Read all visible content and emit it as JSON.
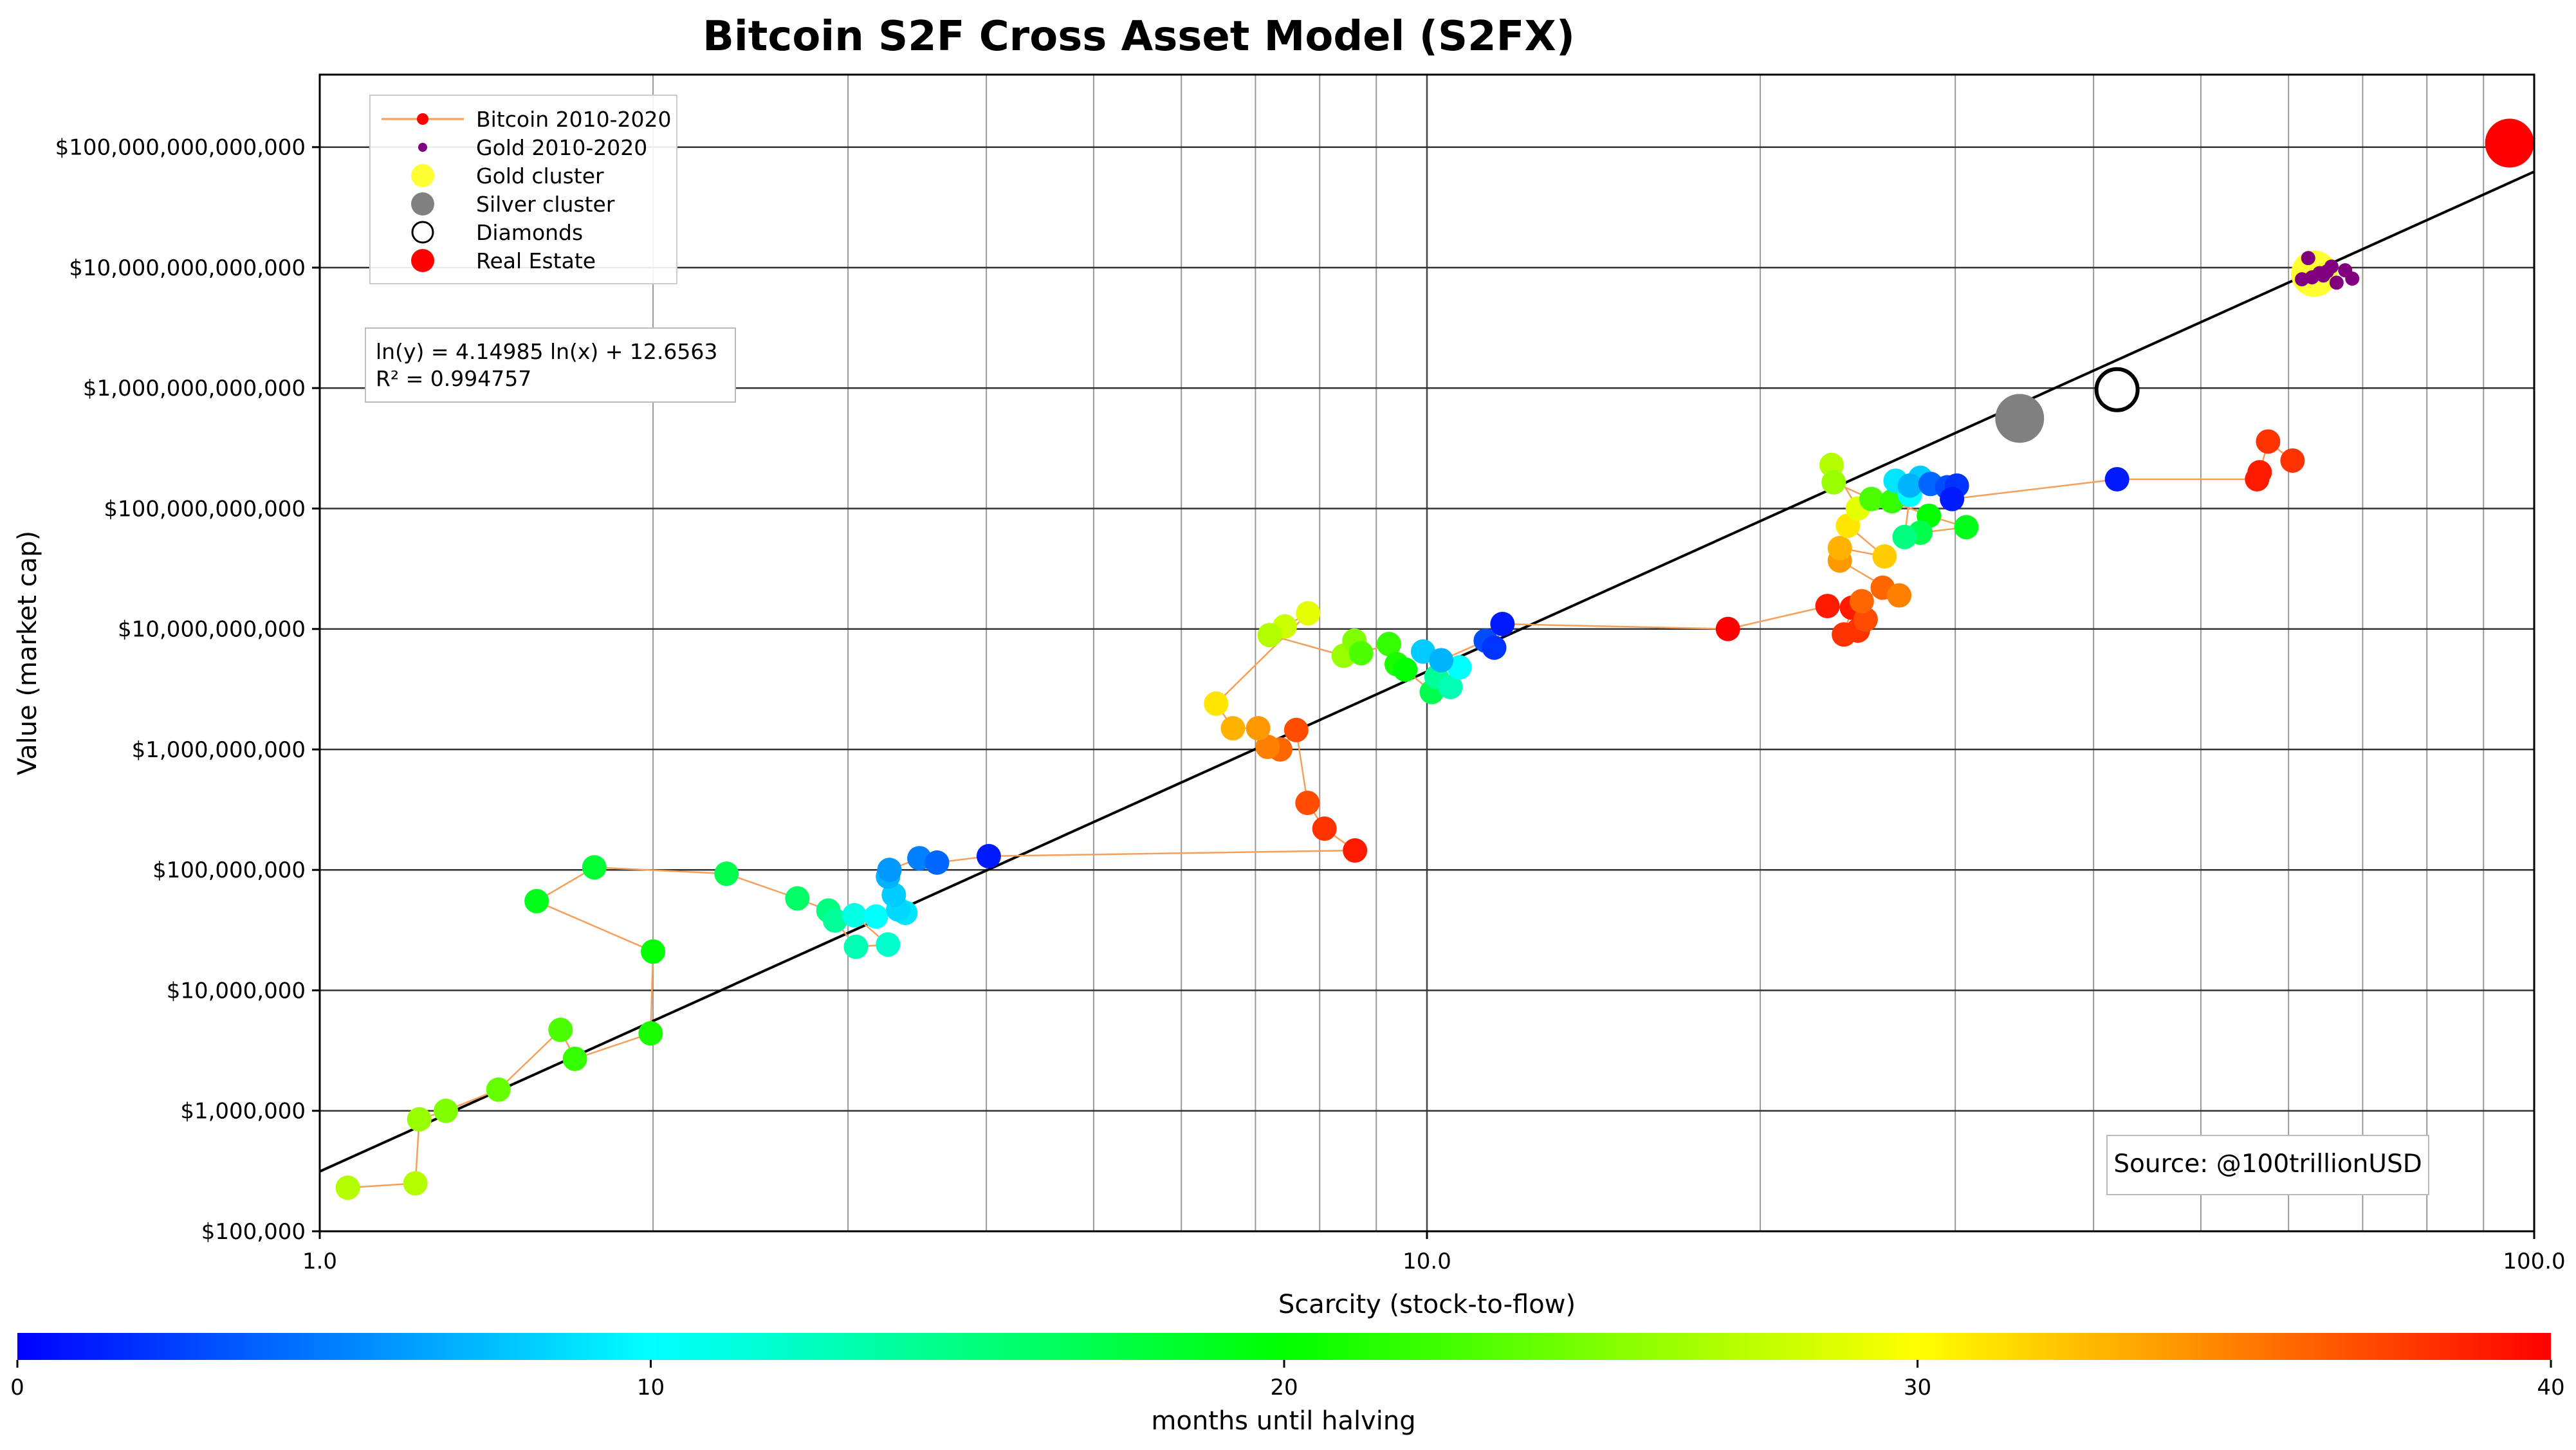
{
  "chart_data": {
    "type": "scatter",
    "title": "Bitcoin S2F Cross Asset Model (S2FX)",
    "xlabel": "Scarcity (stock-to-flow)",
    "ylabel": "Value (market cap)",
    "x_scale": "log",
    "y_scale": "log",
    "xlim": [
      1.0,
      100.0
    ],
    "ylim": [
      100000,
      400000000000000
    ],
    "x_ticks": [
      {
        "value": 1,
        "label": "1.0"
      },
      {
        "value": 10,
        "label": "10.0"
      },
      {
        "value": 100,
        "label": "100.0"
      }
    ],
    "y_ticks": [
      {
        "value": 100000,
        "label": "$100,000"
      },
      {
        "value": 1000000,
        "label": "$1,000,000"
      },
      {
        "value": 10000000,
        "label": "$10,000,000"
      },
      {
        "value": 100000000,
        "label": "$100,000,000"
      },
      {
        "value": 1000000000,
        "label": "$1,000,000,000"
      },
      {
        "value": 10000000000,
        "label": "$10,000,000,000"
      },
      {
        "value": 100000000000,
        "label": "$100,000,000,000"
      },
      {
        "value": 1000000000000,
        "label": "$1,000,000,000,000"
      },
      {
        "value": 10000000000000,
        "label": "$10,000,000,000,000"
      },
      {
        "value": 100000000000000,
        "label": "$100,000,000,000,000"
      }
    ],
    "grid": true,
    "legend_position": "top-left",
    "legend": [
      {
        "label": "Bitcoin 2010-2020",
        "marker": "line-dot",
        "color": "#ff0000",
        "line_color": "#f5a05a"
      },
      {
        "label": "Gold 2010-2020",
        "marker": "dot",
        "color": "#800080"
      },
      {
        "label": "Gold cluster",
        "marker": "circle",
        "color": "#ffff33"
      },
      {
        "label": "Silver cluster",
        "marker": "circle",
        "color": "#808080"
      },
      {
        "label": "Diamonds",
        "marker": "open-circle",
        "color": "#000000"
      },
      {
        "label": "Real Estate",
        "marker": "circle",
        "color": "#ff0000"
      }
    ],
    "regression": {
      "label_line1": "ln(y) = 4.14985 ln(x) + 12.6563",
      "label_line2": "R² = 0.994757",
      "slope": 4.14985,
      "intercept": 12.6563
    },
    "source_note": "Source: @100trillionUSD",
    "colorbar": {
      "label": "months until halving",
      "min": 0,
      "max": 40,
      "ticks": [
        0,
        10,
        20,
        30,
        40
      ],
      "colormap": [
        "#0000ff",
        "#00ffff",
        "#00ff00",
        "#ffff00",
        "#ff0000"
      ]
    },
    "series": [
      {
        "name": "Bitcoin 2010-2020",
        "line_color": "#f5a05a",
        "points": [
          {
            "x": 1.06,
            "y": 230000,
            "c": 27
          },
          {
            "x": 1.22,
            "y": 250000,
            "c": 27
          },
          {
            "x": 1.23,
            "y": 850000,
            "c": 26
          },
          {
            "x": 1.3,
            "y": 1000000,
            "c": 25
          },
          {
            "x": 1.45,
            "y": 1500000,
            "c": 24
          },
          {
            "x": 1.65,
            "y": 4700000,
            "c": 23
          },
          {
            "x": 1.7,
            "y": 2700000,
            "c": 22
          },
          {
            "x": 1.99,
            "y": 4400000,
            "c": 21
          },
          {
            "x": 2.0,
            "y": 21000000,
            "c": 20
          },
          {
            "x": 1.57,
            "y": 55000000,
            "c": 19
          },
          {
            "x": 1.77,
            "y": 105000000,
            "c": 18
          },
          {
            "x": 2.33,
            "y": 93000000,
            "c": 17
          },
          {
            "x": 2.7,
            "y": 58000000,
            "c": 16
          },
          {
            "x": 2.88,
            "y": 46000000,
            "c": 15
          },
          {
            "x": 2.92,
            "y": 38000000,
            "c": 14
          },
          {
            "x": 3.05,
            "y": 23000000,
            "c": 13
          },
          {
            "x": 3.26,
            "y": 24000000,
            "c": 12
          },
          {
            "x": 3.04,
            "y": 42000000,
            "c": 11
          },
          {
            "x": 3.18,
            "y": 41000000,
            "c": 10
          },
          {
            "x": 3.38,
            "y": 44000000,
            "c": 9
          },
          {
            "x": 3.33,
            "y": 47000000,
            "c": 8.5
          },
          {
            "x": 3.3,
            "y": 62000000,
            "c": 8
          },
          {
            "x": 3.26,
            "y": 88000000,
            "c": 7
          },
          {
            "x": 3.27,
            "y": 100000000,
            "c": 6
          },
          {
            "x": 3.48,
            "y": 125000000,
            "c": 5
          },
          {
            "x": 3.61,
            "y": 115000000,
            "c": 4
          },
          {
            "x": 4.02,
            "y": 130000000,
            "c": 1
          },
          {
            "x": 8.61,
            "y": 145000000,
            "c": 39
          },
          {
            "x": 8.08,
            "y": 220000000,
            "c": 38
          },
          {
            "x": 7.8,
            "y": 360000000,
            "c": 37
          },
          {
            "x": 7.62,
            "y": 1450000000,
            "c": 37
          },
          {
            "x": 7.37,
            "y": 1000000000,
            "c": 36
          },
          {
            "x": 7.18,
            "y": 1050000000,
            "c": 35
          },
          {
            "x": 7.04,
            "y": 1500000000,
            "c": 34
          },
          {
            "x": 6.68,
            "y": 1500000000,
            "c": 33
          },
          {
            "x": 6.45,
            "y": 2400000000,
            "c": 31
          },
          {
            "x": 7.81,
            "y": 13500000000,
            "c": 29
          },
          {
            "x": 7.44,
            "y": 10500000000,
            "c": 28
          },
          {
            "x": 7.21,
            "y": 8900000000,
            "c": 27
          },
          {
            "x": 8.41,
            "y": 6000000000,
            "c": 26
          },
          {
            "x": 8.6,
            "y": 8000000000,
            "c": 25
          },
          {
            "x": 8.72,
            "y": 6300000000,
            "c": 23
          },
          {
            "x": 9.24,
            "y": 7500000000,
            "c": 22
          },
          {
            "x": 9.39,
            "y": 5100000000,
            "c": 21
          },
          {
            "x": 9.56,
            "y": 4600000000,
            "c": 20
          },
          {
            "x": 10.1,
            "y": 3000000000,
            "c": 17
          },
          {
            "x": 10.2,
            "y": 4000000000,
            "c": 14
          },
          {
            "x": 10.5,
            "y": 3300000000,
            "c": 13
          },
          {
            "x": 10.7,
            "y": 4800000000,
            "c": 10
          },
          {
            "x": 9.92,
            "y": 6500000000,
            "c": 8
          },
          {
            "x": 10.3,
            "y": 5500000000,
            "c": 7
          },
          {
            "x": 11.3,
            "y": 8000000000,
            "c": 3
          },
          {
            "x": 11.5,
            "y": 7000000000,
            "c": 2
          },
          {
            "x": 11.7,
            "y": 11000000000,
            "c": 1
          },
          {
            "x": 18.7,
            "y": 10000000000,
            "c": 40
          },
          {
            "x": 23.0,
            "y": 15500000000,
            "c": 39
          },
          {
            "x": 24.2,
            "y": 15000000000,
            "c": 39
          },
          {
            "x": 23.8,
            "y": 9000000000,
            "c": 38
          },
          {
            "x": 24.5,
            "y": 9700000000,
            "c": 38
          },
          {
            "x": 24.9,
            "y": 12000000000,
            "c": 37
          },
          {
            "x": 24.7,
            "y": 17000000000,
            "c": 36
          },
          {
            "x": 25.8,
            "y": 22000000000,
            "c": 36
          },
          {
            "x": 26.7,
            "y": 19000000000,
            "c": 35
          },
          {
            "x": 23.6,
            "y": 37000000000,
            "c": 34
          },
          {
            "x": 23.6,
            "y": 47000000000,
            "c": 33
          },
          {
            "x": 25.9,
            "y": 40000000000,
            "c": 32
          },
          {
            "x": 24.0,
            "y": 72000000000,
            "c": 31
          },
          {
            "x": 24.5,
            "y": 100000000000,
            "c": 29
          },
          {
            "x": 23.2,
            "y": 230000000000,
            "c": 27
          },
          {
            "x": 23.3,
            "y": 165000000000,
            "c": 26
          },
          {
            "x": 25.2,
            "y": 120000000000,
            "c": 23
          },
          {
            "x": 26.3,
            "y": 115000000000,
            "c": 22
          },
          {
            "x": 28.4,
            "y": 87000000000,
            "c": 20
          },
          {
            "x": 30.7,
            "y": 70000000000,
            "c": 19
          },
          {
            "x": 27.9,
            "y": 63000000000,
            "c": 17
          },
          {
            "x": 27.0,
            "y": 58000000000,
            "c": 15
          },
          {
            "x": 27.3,
            "y": 130000000000,
            "c": 10
          },
          {
            "x": 26.5,
            "y": 170000000000,
            "c": 9
          },
          {
            "x": 27.9,
            "y": 180000000000,
            "c": 8
          },
          {
            "x": 27.3,
            "y": 155000000000,
            "c": 7
          },
          {
            "x": 28.5,
            "y": 160000000000,
            "c": 4
          },
          {
            "x": 29.5,
            "y": 150000000000,
            "c": 3
          },
          {
            "x": 30.1,
            "y": 155000000000,
            "c": 2
          },
          {
            "x": 29.8,
            "y": 120000000000,
            "c": 1
          },
          {
            "x": 42.0,
            "y": 175000000000,
            "c": 1
          },
          {
            "x": 56.2,
            "y": 175000000000,
            "c": 39
          },
          {
            "x": 56.5,
            "y": 200000000000,
            "c": 39
          },
          {
            "x": 57.5,
            "y": 360000000000,
            "c": 38
          },
          {
            "x": 60.5,
            "y": 250000000000,
            "c": 38
          }
        ]
      },
      {
        "name": "Gold 2010-2020",
        "points": [
          {
            "x": 61.7,
            "y": 8000000000000
          },
          {
            "x": 63.0,
            "y": 8300000000000
          },
          {
            "x": 64.0,
            "y": 9000000000000
          },
          {
            "x": 64.5,
            "y": 8600000000000
          },
          {
            "x": 65.0,
            "y": 9300000000000
          },
          {
            "x": 65.6,
            "y": 10200000000000
          },
          {
            "x": 66.3,
            "y": 7500000000000
          },
          {
            "x": 67.5,
            "y": 9500000000000
          },
          {
            "x": 62.5,
            "y": 12000000000000
          },
          {
            "x": 68.5,
            "y": 8100000000000
          }
        ]
      },
      {
        "name": "Gold cluster",
        "points": [
          {
            "x": 63.3,
            "y": 8900000000000
          }
        ]
      },
      {
        "name": "Silver cluster",
        "points": [
          {
            "x": 34.3,
            "y": 560000000000
          }
        ]
      },
      {
        "name": "Diamonds",
        "points": [
          {
            "x": 42.0,
            "y": 970000000000
          }
        ]
      },
      {
        "name": "Real Estate",
        "points": [
          {
            "x": 95.0,
            "y": 108000000000000
          }
        ]
      }
    ]
  }
}
